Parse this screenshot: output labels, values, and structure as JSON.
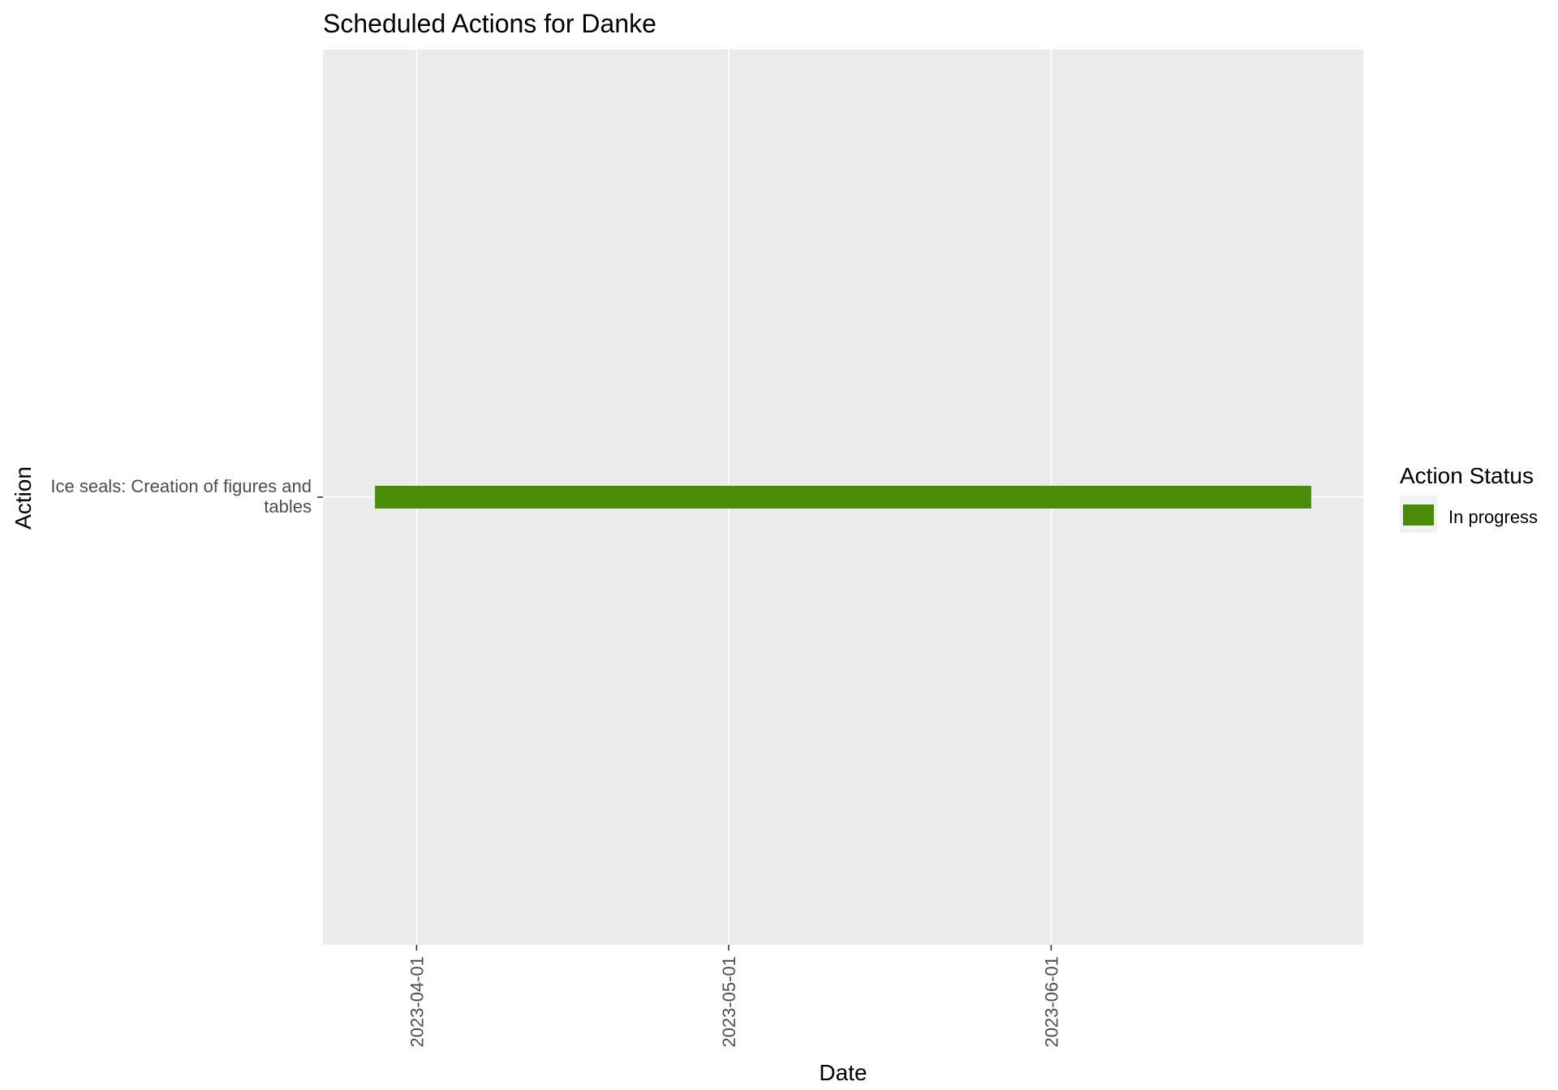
{
  "chart_data": {
    "type": "bar",
    "orientation": "horizontal-gantt",
    "title": "Scheduled Actions for Danke",
    "xlabel": "Date",
    "ylabel": "Action",
    "x_ticks": [
      "2023-04-01",
      "2023-05-01",
      "2023-06-01"
    ],
    "xlim": [
      "2023-03-23",
      "2023-07-01"
    ],
    "categories": [
      "Ice seals: Creation of figures and tables"
    ],
    "category_lines": [
      "Ice seals: Creation of figures and",
      "tables"
    ],
    "series": [
      {
        "name": "In progress",
        "color": "#4A8C07",
        "bars": [
          {
            "category": "Ice seals: Creation of figures and tables",
            "start": "2023-03-28",
            "end": "2023-06-26"
          }
        ]
      }
    ],
    "legend": {
      "title": "Action Status",
      "placement": "right"
    },
    "grid": true,
    "panel_background": "#EBEBEB",
    "grid_color": "#FFFFFF"
  }
}
